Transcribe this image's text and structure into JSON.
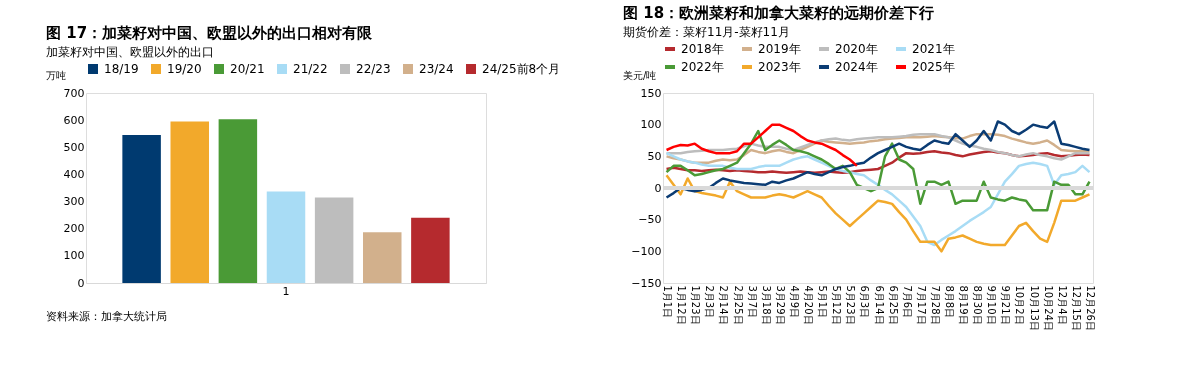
{
  "chart_data": [
    {
      "type": "bar",
      "title": "图 17：加菜籽对中国、欧盟以外的出口相对有限",
      "subtitle": "加菜籽对中国、欧盟以外的出口",
      "ylabel": "万吨",
      "categories": [
        "1"
      ],
      "series": [
        {
          "name": "18/19",
          "color": "#003a70",
          "values": [
            545
          ]
        },
        {
          "name": "19/20",
          "color": "#f2a92b",
          "values": [
            595
          ]
        },
        {
          "name": "20/21",
          "color": "#4a9a36",
          "values": [
            603
          ]
        },
        {
          "name": "21/22",
          "color": "#a8dcf5",
          "values": [
            337
          ]
        },
        {
          "name": "22/23",
          "color": "#bdbdbd",
          "values": [
            315
          ]
        },
        {
          "name": "23/24",
          "color": "#d2b08c",
          "values": [
            187
          ]
        },
        {
          "name": "24/25前8个月",
          "color": "#b52a2e",
          "values": [
            240
          ]
        }
      ],
      "ylim": [
        0,
        700
      ],
      "yticks": [
        0,
        100,
        200,
        300,
        400,
        500,
        600,
        700
      ],
      "legend": "top",
      "grid": false,
      "annotations": [
        "资料来源：加拿大统计局"
      ]
    },
    {
      "type": "line",
      "title": "图 18：欧洲菜籽和加拿大菜籽的远期价差下行",
      "subtitle": "期货价差：菜籽11月-菜籽11月",
      "ylabel": "美元/吨",
      "categories": [
        "1月1日",
        null,
        "1月12日",
        null,
        "1月23日",
        null,
        "2月3日",
        null,
        "2月14日",
        null,
        "2月25日",
        null,
        "3月7日",
        null,
        "3月18日",
        null,
        "3月29日",
        null,
        "4月9日",
        null,
        "4月20日",
        null,
        "5月1日",
        null,
        "5月12日",
        null,
        "5月23日",
        null,
        "6月3日",
        null,
        "6月14日",
        null,
        "6月25日",
        null,
        "7月6日",
        null,
        "7月17日",
        null,
        "7月28日",
        null,
        "8月8日",
        null,
        "8月19日",
        null,
        "8月30日",
        null,
        "9月10日",
        null,
        "9月21日",
        null,
        "10月2日",
        null,
        "10月13日",
        null,
        "10月24日",
        null,
        "12月4日",
        null,
        "12月15日",
        null,
        "12月26日"
      ],
      "series": [
        {
          "name": "2018年",
          "color": "#b52a2e",
          "values": [
            30,
            32,
            30,
            28,
            28,
            27,
            28,
            29,
            28,
            27,
            28,
            27,
            26,
            25,
            25,
            26,
            25,
            24,
            25,
            26,
            25,
            24,
            25,
            26,
            25,
            24,
            25,
            27,
            28,
            29,
            30,
            35,
            40,
            48,
            55,
            54,
            55,
            57,
            58,
            56,
            55,
            52,
            50,
            53,
            55,
            57,
            58,
            56,
            55,
            52,
            50,
            51,
            52,
            54,
            55,
            52,
            50,
            51,
            52,
            53,
            52
          ]
        },
        {
          "name": "2019年",
          "color": "#d2b08c",
          "values": [
            50,
            47,
            45,
            42,
            40,
            40,
            40,
            43,
            45,
            44,
            45,
            52,
            60,
            57,
            55,
            58,
            60,
            57,
            55,
            60,
            65,
            70,
            75,
            73,
            72,
            71,
            70,
            71,
            72,
            74,
            75,
            77,
            78,
            79,
            80,
            80,
            80,
            81,
            82,
            81,
            80,
            79,
            78,
            82,
            85,
            85,
            85,
            84,
            82,
            78,
            75,
            72,
            70,
            72,
            75,
            68,
            60,
            59,
            58,
            58,
            58
          ]
        },
        {
          "name": "2020年",
          "color": "#bdbdbd",
          "values": [
            55,
            55,
            55,
            57,
            58,
            59,
            60,
            60,
            60,
            61,
            62,
            66,
            70,
            67,
            65,
            65,
            65,
            62,
            60,
            64,
            68,
            72,
            75,
            77,
            78,
            76,
            75,
            77,
            78,
            79,
            80,
            80,
            80,
            81,
            82,
            84,
            85,
            85,
            85,
            82,
            80,
            75,
            70,
            67,
            65,
            62,
            60,
            57,
            55,
            52,
            50,
            53,
            55,
            52,
            50,
            47,
            45,
            50,
            55,
            55,
            55
          ]
        },
        {
          "name": "2021年",
          "color": "#a8dcf5",
          "values": [
            55,
            50,
            45,
            42,
            40,
            37,
            35,
            35,
            35,
            32,
            30,
            30,
            30,
            33,
            35,
            35,
            35,
            40,
            45,
            48,
            50,
            45,
            40,
            35,
            30,
            27,
            25,
            22,
            20,
            12,
            5,
            -3,
            -10,
            -20,
            -30,
            -45,
            -60,
            -85,
            -90,
            -82,
            -75,
            -68,
            -60,
            -52,
            -45,
            -38,
            -30,
            -10,
            10,
            22,
            35,
            38,
            40,
            38,
            35,
            5,
            20,
            22,
            25,
            35,
            25
          ]
        },
        {
          "name": "2022年",
          "color": "#4a9a36",
          "values": [
            25,
            35,
            35,
            28,
            20,
            22,
            25,
            28,
            30,
            35,
            40,
            55,
            70,
            90,
            60,
            68,
            75,
            68,
            60,
            58,
            55,
            50,
            45,
            38,
            30,
            35,
            25,
            5,
            0,
            -5,
            0,
            50,
            70,
            45,
            40,
            30,
            -25,
            10,
            10,
            5,
            10,
            -25,
            -20,
            -20,
            -20,
            10,
            -15,
            -18,
            -20,
            -15,
            -18,
            -20,
            -35,
            -35,
            -35,
            10,
            5,
            5,
            -10,
            -10,
            10
          ]
        },
        {
          "name": "2023年",
          "color": "#f2a92b",
          "values": [
            20,
            5,
            -10,
            15,
            -5,
            -8,
            -10,
            -12,
            -15,
            10,
            -5,
            -10,
            -15,
            -15,
            -15,
            -12,
            -10,
            -12,
            -15,
            -10,
            -5,
            -10,
            -15,
            -28,
            -40,
            -50,
            -60,
            -50,
            -40,
            -30,
            -20,
            -22,
            -25,
            -38,
            -50,
            -68,
            -85,
            -85,
            -85,
            -100,
            -80,
            -78,
            -75,
            -80,
            -85,
            -88,
            -90,
            -90,
            -90,
            -75,
            -60,
            -55,
            -68,
            -80,
            -85,
            -55,
            -20,
            -20,
            -20,
            -15,
            -10
          ]
        },
        {
          "name": "2024年",
          "color": "#0b3c74",
          "values": [
            -15,
            -8,
            0,
            -3,
            -5,
            -3,
            0,
            8,
            15,
            12,
            10,
            8,
            7,
            6,
            5,
            10,
            8,
            12,
            15,
            20,
            25,
            22,
            20,
            25,
            30,
            33,
            35,
            38,
            40,
            48,
            55,
            60,
            65,
            70,
            65,
            62,
            60,
            68,
            75,
            72,
            70,
            85,
            75,
            65,
            75,
            90,
            75,
            105,
            100,
            90,
            85,
            92,
            100,
            97,
            95,
            105,
            70,
            68,
            65,
            62,
            60
          ]
        },
        {
          "name": "2025年",
          "color": "#ff0000",
          "values": [
            60,
            65,
            68,
            67,
            70,
            62,
            58,
            55,
            55,
            55,
            58,
            70,
            70,
            80,
            90,
            100,
            100,
            95,
            90,
            82,
            75,
            72,
            70,
            65,
            60,
            52,
            45,
            35,
            null,
            null,
            null,
            null,
            null,
            null,
            null,
            null,
            null,
            null,
            null,
            null,
            null,
            null,
            null,
            null,
            null,
            null,
            null,
            null,
            null,
            null,
            null,
            null,
            null,
            null,
            null,
            null,
            null,
            null,
            null,
            null,
            null
          ]
        }
      ],
      "ylim": [
        -150,
        150
      ],
      "yticks": [
        -150,
        -100,
        -50,
        0,
        50,
        100,
        150
      ],
      "legend": "top",
      "grid": false,
      "ref_lines": [
        {
          "axis": "y",
          "value": 0,
          "color": "#d9d9d9"
        }
      ]
    }
  ]
}
